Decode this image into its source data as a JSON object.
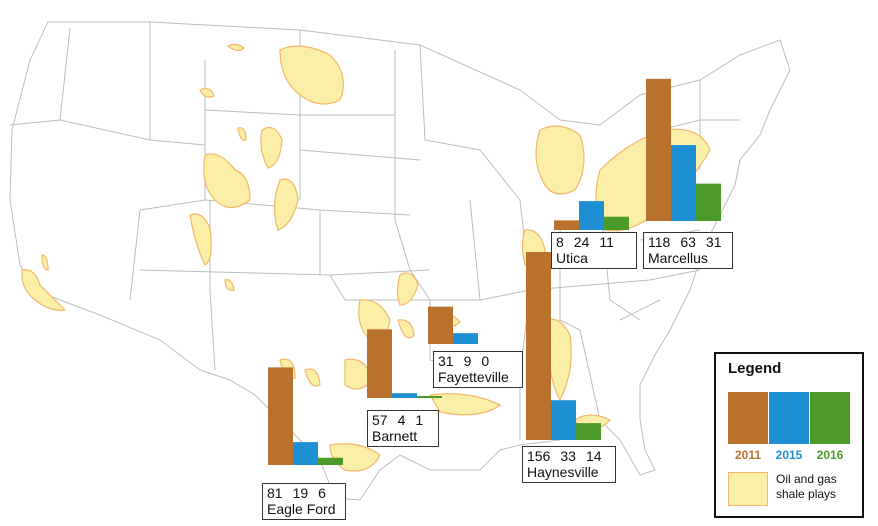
{
  "legend": {
    "title": "Legend",
    "years": [
      "2011",
      "2015",
      "2016"
    ],
    "shale_label_line1": "Oil and gas",
    "shale_label_line2": "shale plays"
  },
  "colors": {
    "y2011": "#b8722c",
    "y2015": "#1e8fd3",
    "y2016": "#4c9a2a"
  },
  "chart_data": {
    "type": "bar",
    "series_names": [
      "2011",
      "2015",
      "2016"
    ],
    "plays": [
      {
        "name": "Eagle Ford",
        "values": [
          81,
          19,
          6
        ]
      },
      {
        "name": "Barnett",
        "values": [
          57,
          4,
          1
        ]
      },
      {
        "name": "Fayetteville",
        "values": [
          31,
          9,
          0
        ]
      },
      {
        "name": "Haynesville",
        "values": [
          156,
          33,
          14
        ]
      },
      {
        "name": "Utica",
        "values": [
          8,
          24,
          11
        ]
      },
      {
        "name": "Marcellus",
        "values": [
          118,
          63,
          31
        ]
      }
    ]
  }
}
